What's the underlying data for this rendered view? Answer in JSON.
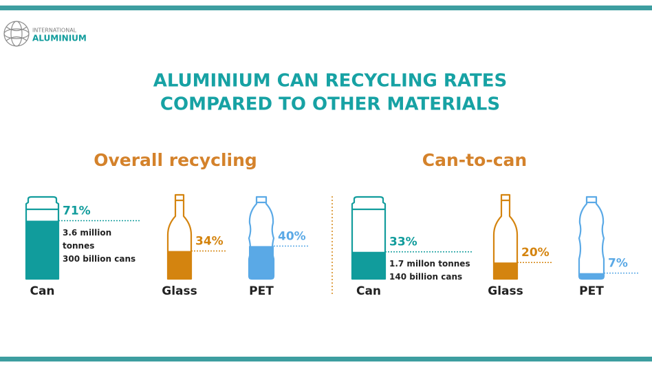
{
  "logo": {
    "line1": "INTERNATIONAL",
    "line2": "ALUMINIUM"
  },
  "title": [
    "ALUMINIUM CAN RECYCLING RATES",
    "COMPARED TO OTHER MATERIALS"
  ],
  "chart_data": [
    {
      "type": "fill",
      "title": "Overall recycling",
      "categories": [
        "Can",
        "Glass",
        "PET"
      ],
      "values": [
        71,
        34,
        40
      ],
      "value_labels": [
        "71%",
        "34%",
        "40%"
      ],
      "colors": [
        "#119c9c",
        "#d4840f",
        "#5aa9e6"
      ],
      "ylim": [
        0,
        100
      ],
      "annotations": [
        "3.6 million",
        "tonnes",
        "300 billion cans"
      ]
    },
    {
      "type": "fill",
      "title": "Can-to-can",
      "categories": [
        "Can",
        "Glass",
        "PET"
      ],
      "values": [
        33,
        20,
        7
      ],
      "value_labels": [
        "33%",
        "20%",
        "7%"
      ],
      "colors": [
        "#119c9c",
        "#d4840f",
        "#5aa9e6"
      ],
      "ylim": [
        0,
        100
      ],
      "annotations": [
        "1.7 millon tonnes",
        "140 billion cans"
      ]
    }
  ]
}
